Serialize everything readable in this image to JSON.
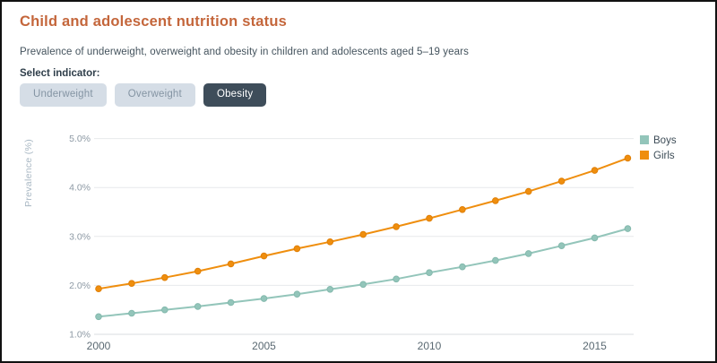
{
  "header": {
    "title": "Child and adolescent nutrition status",
    "subtitle": "Prevalence of underweight, overweight and obesity in children and adolescents aged 5–19 years"
  },
  "indicator_selector": {
    "label": "Select indicator:",
    "options": [
      {
        "label": "Underweight",
        "selected": false
      },
      {
        "label": "Overweight",
        "selected": false
      },
      {
        "label": "Obesity",
        "selected": true
      }
    ]
  },
  "colors": {
    "title": "#c4663b",
    "button_bg": "#d5dde6",
    "button_text": "#8494a3",
    "button_selected_bg": "#3e4d5a",
    "button_selected_text": "#ffffff",
    "grid": "#e7e9eb",
    "boys": "#93c5ba",
    "girls": "#ef8e0e"
  },
  "chart_data": {
    "type": "line",
    "title": "",
    "xlabel": "",
    "ylabel": "Prevalence (%)",
    "ylim": [
      1.0,
      5.0
    ],
    "y_ticks": [
      {
        "value": 1.0,
        "label": "1.0%"
      },
      {
        "value": 2.0,
        "label": "2.0%"
      },
      {
        "value": 3.0,
        "label": "3.0%"
      },
      {
        "value": 4.0,
        "label": "4.0%"
      },
      {
        "value": 5.0,
        "label": "5.0%"
      }
    ],
    "x": [
      2000,
      2001,
      2002,
      2003,
      2004,
      2005,
      2006,
      2007,
      2008,
      2009,
      2010,
      2011,
      2012,
      2013,
      2014,
      2015,
      2016
    ],
    "x_ticks": [
      2000,
      2005,
      2010,
      2015
    ],
    "grid": "horizontal",
    "legend_position": "top-right",
    "series": [
      {
        "name": "Boys",
        "color": "#93c5ba",
        "marker_stroke": "#84b9ad",
        "values": [
          1.36,
          1.43,
          1.5,
          1.57,
          1.65,
          1.73,
          1.82,
          1.92,
          2.02,
          2.13,
          2.26,
          2.38,
          2.51,
          2.65,
          2.81,
          2.97,
          3.16
        ]
      },
      {
        "name": "Girls",
        "color": "#ef8e0e",
        "marker_stroke": "#e07f06",
        "values": [
          1.93,
          2.04,
          2.16,
          2.29,
          2.44,
          2.6,
          2.75,
          2.89,
          3.04,
          3.2,
          3.37,
          3.55,
          3.73,
          3.92,
          4.13,
          4.35,
          4.6
        ]
      }
    ]
  }
}
